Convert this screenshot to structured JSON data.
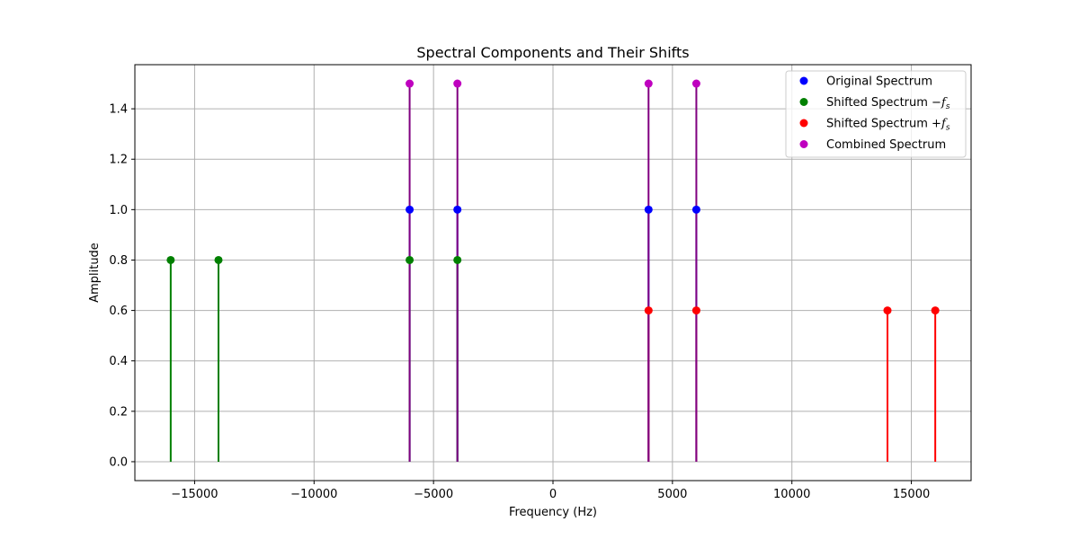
{
  "chart_data": {
    "type": "stem",
    "title": "Spectral Components and Their Shifts",
    "xlabel": "Frequency (Hz)",
    "ylabel": "Amplitude",
    "xlim": [
      -17500,
      17500
    ],
    "ylim": [
      -0.075,
      1.575
    ],
    "xticks": [
      -15000,
      -10000,
      -5000,
      0,
      5000,
      10000,
      15000
    ],
    "xtick_labels": [
      "−15000",
      "−10000",
      "−5000",
      "0",
      "5000",
      "10000",
      "15000"
    ],
    "yticks": [
      0.0,
      0.2,
      0.4,
      0.6,
      0.8,
      1.0,
      1.2,
      1.4
    ],
    "ytick_labels": [
      "0.0",
      "0.2",
      "0.4",
      "0.6",
      "0.8",
      "1.0",
      "1.2",
      "1.4"
    ],
    "grid": true,
    "legend_position": "top-right",
    "series": [
      {
        "name": "Original Spectrum",
        "base": "Original Spectrum",
        "sub": "",
        "color": "#0000ff",
        "stem_color": "#0000ff",
        "x": [
          -6000,
          -4000,
          4000,
          6000
        ],
        "y": [
          1.0,
          1.0,
          1.0,
          1.0
        ]
      },
      {
        "name": "Shifted Spectrum −f_s",
        "base": "Shifted Spectrum −",
        "sub": "s",
        "color": "#008000",
        "stem_color": "#008000",
        "x": [
          -16000,
          -14000,
          -6000,
          -4000
        ],
        "y": [
          0.8,
          0.8,
          0.8,
          0.8
        ]
      },
      {
        "name": "Shifted Spectrum +f_s",
        "base": "Shifted Spectrum +",
        "sub": "s",
        "color": "#ff0000",
        "stem_color": "#ff0000",
        "x": [
          4000,
          6000,
          14000,
          16000
        ],
        "y": [
          0.6,
          0.6,
          0.6,
          0.6
        ]
      },
      {
        "name": "Combined Spectrum",
        "base": "Combined Spectrum",
        "sub": "",
        "color": "#bf00bf",
        "stem_color": "#800080",
        "x": [
          -6000,
          -4000,
          4000,
          6000
        ],
        "y": [
          1.5,
          1.5,
          1.5,
          1.5
        ]
      }
    ]
  }
}
